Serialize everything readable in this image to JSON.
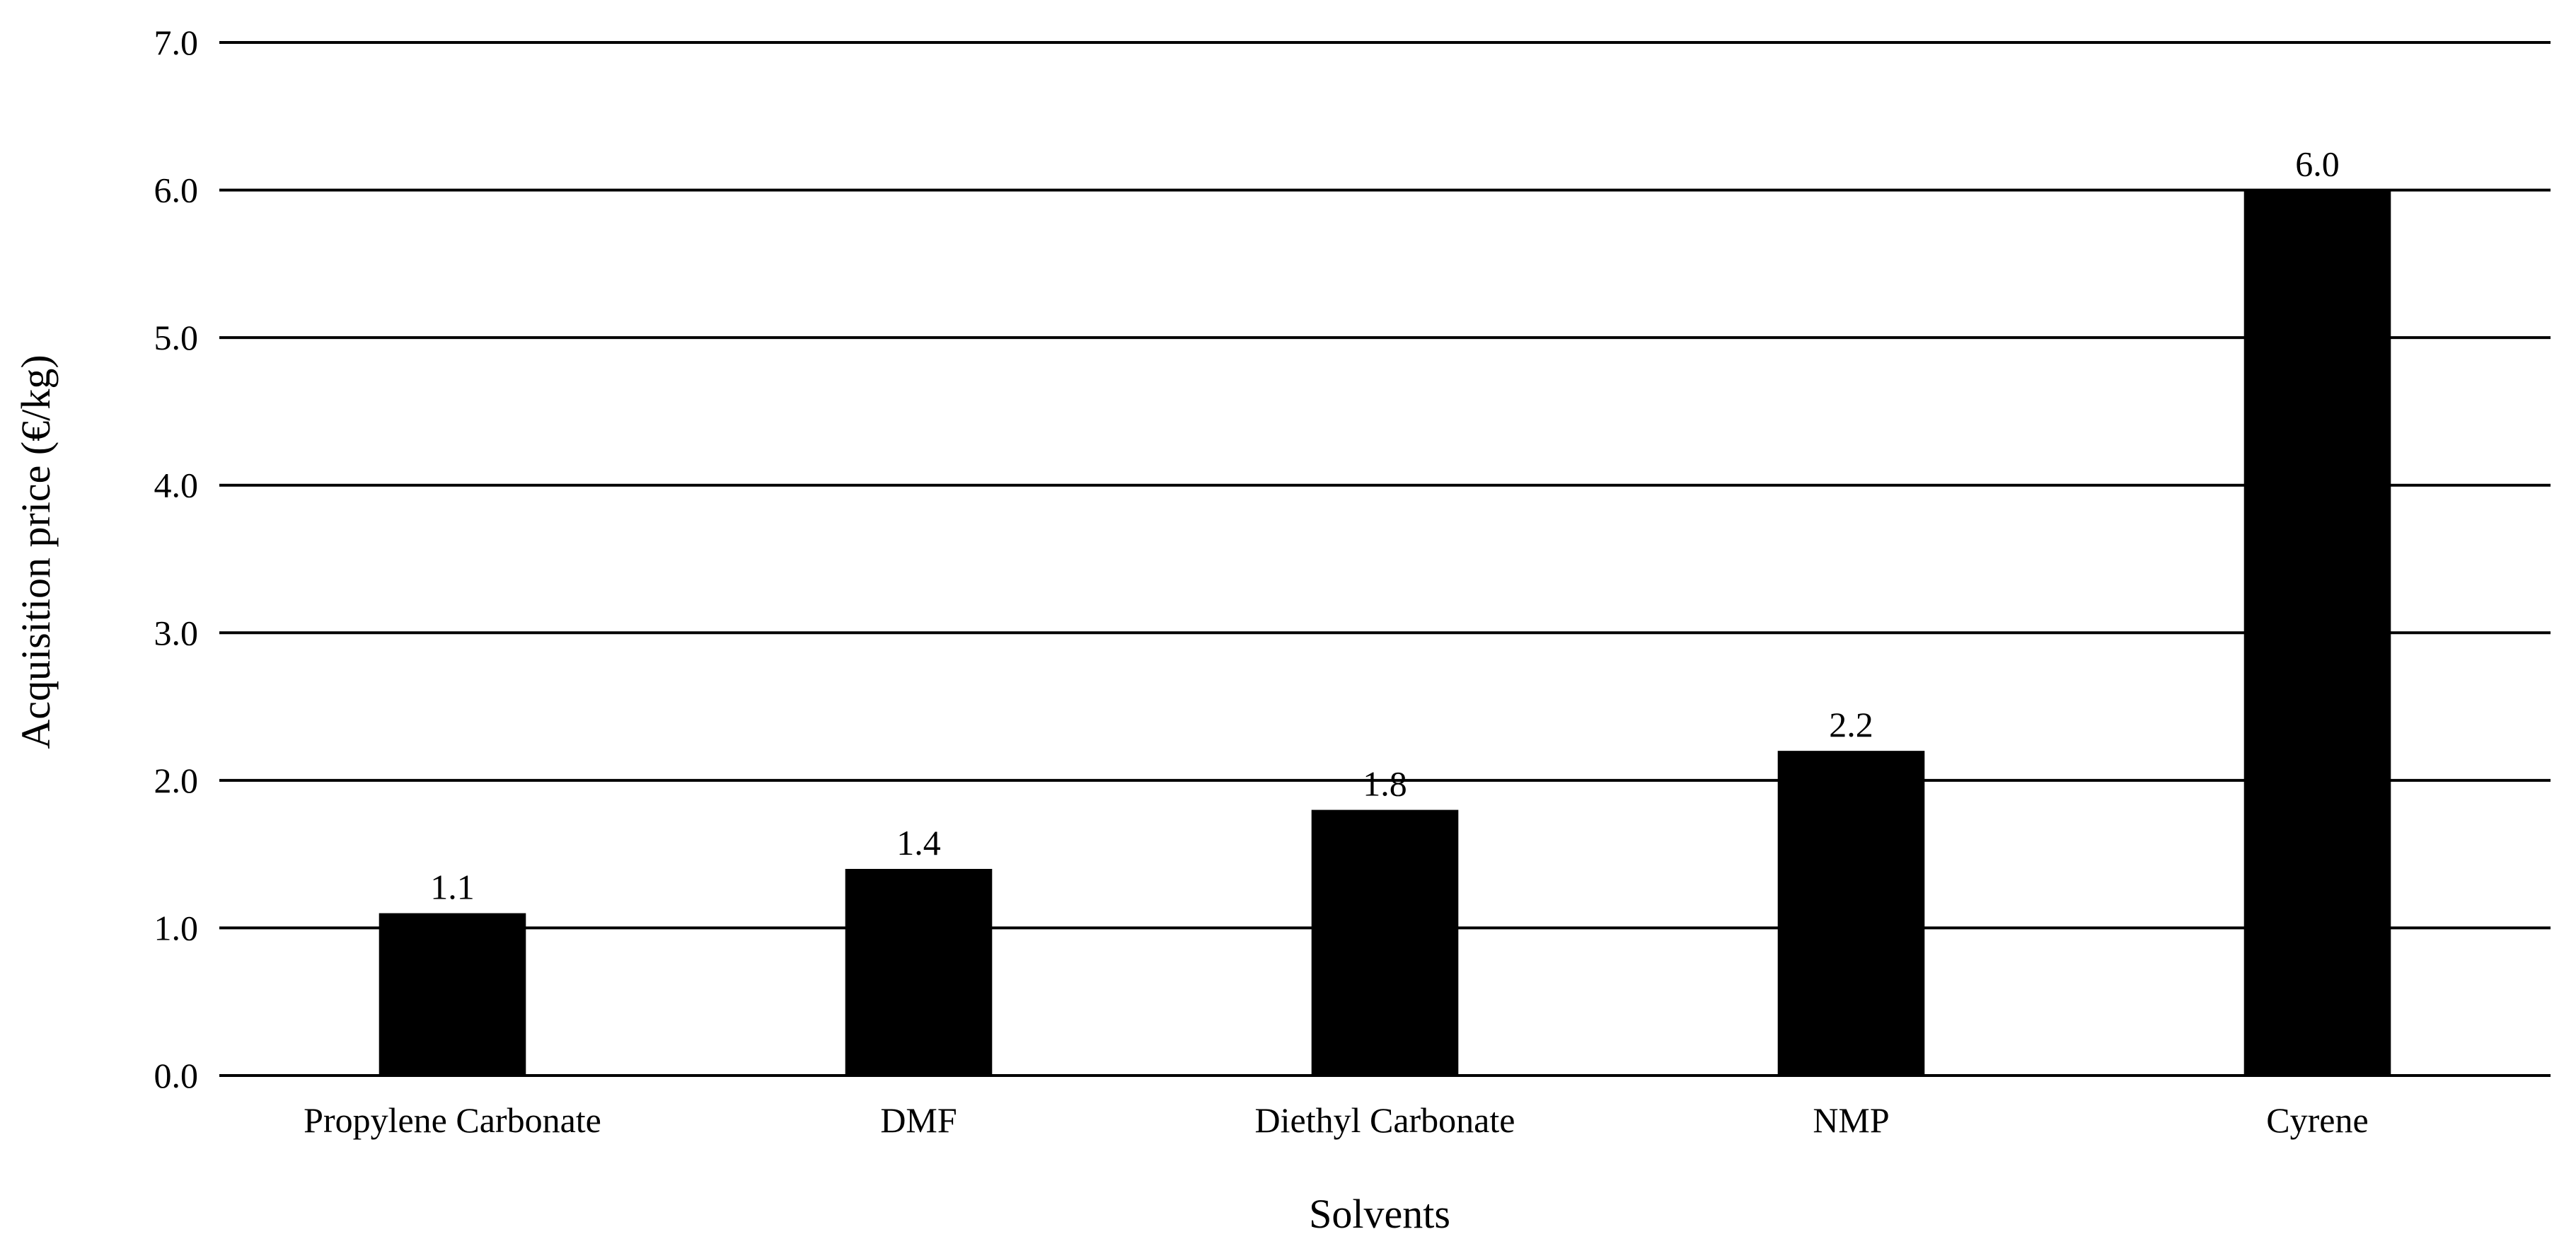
{
  "chart_data": {
    "type": "bar",
    "title": "",
    "xlabel": "Solvents",
    "ylabel": "Acquisition price (€/kg)",
    "categories": [
      "Propylene Carbonate",
      "DMF",
      "Diethyl Carbonate",
      "NMP",
      "Cyrene"
    ],
    "values": [
      1.1,
      1.4,
      1.8,
      2.2,
      6.0
    ],
    "data_labels": [
      "1.1",
      "1.4",
      "1.8",
      "2.2",
      "6.0"
    ],
    "ylim": [
      0,
      7
    ],
    "yticks": [
      0,
      1,
      2,
      3,
      4,
      5,
      6,
      7
    ],
    "ytick_labels": [
      "0.0",
      "1.0",
      "2.0",
      "3.0",
      "4.0",
      "5.0",
      "6.0",
      "7.0"
    ],
    "grid": "horizontal",
    "legend": "none",
    "bar_color": "#000000"
  }
}
